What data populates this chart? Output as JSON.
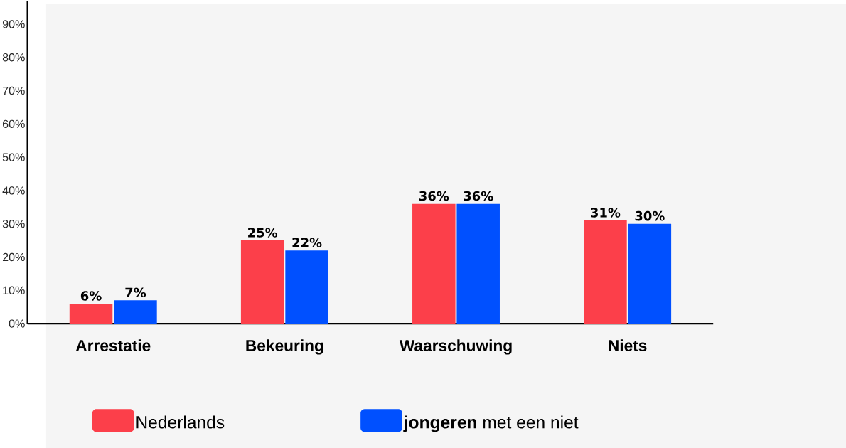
{
  "chart_data": {
    "type": "bar",
    "categories": [
      "Arrestatie",
      "Bekeuring",
      "Waarschuwing",
      "Niets"
    ],
    "series": [
      {
        "name": "Nederlands",
        "color": "#fc3f4a",
        "values": [
          6,
          25,
          36,
          31
        ],
        "value_labels": [
          "6%",
          "25%",
          "36%",
          "31%"
        ]
      },
      {
        "name": "**jongeren** met een niet",
        "color": "#0050ff",
        "values": [
          7,
          22,
          36,
          30
        ],
        "value_labels": [
          "7%",
          "22%",
          "36%",
          "30%"
        ]
      }
    ],
    "ylim": [
      0,
      97
    ],
    "yticks": [
      {
        "value": 0,
        "label": "0%"
      },
      {
        "value": 10,
        "label": "10%"
      },
      {
        "value": 20,
        "label": "20%"
      },
      {
        "value": 30,
        "label": "30%"
      },
      {
        "value": 40,
        "label": "40%"
      },
      {
        "value": 50,
        "label": "50%"
      },
      {
        "value": 60,
        "label": "60%"
      },
      {
        "value": 70,
        "label": "70%"
      },
      {
        "value": 80,
        "label": "80%"
      },
      {
        "value": 90,
        "label": "90%"
      }
    ],
    "grid": false,
    "legend": "bottom"
  }
}
